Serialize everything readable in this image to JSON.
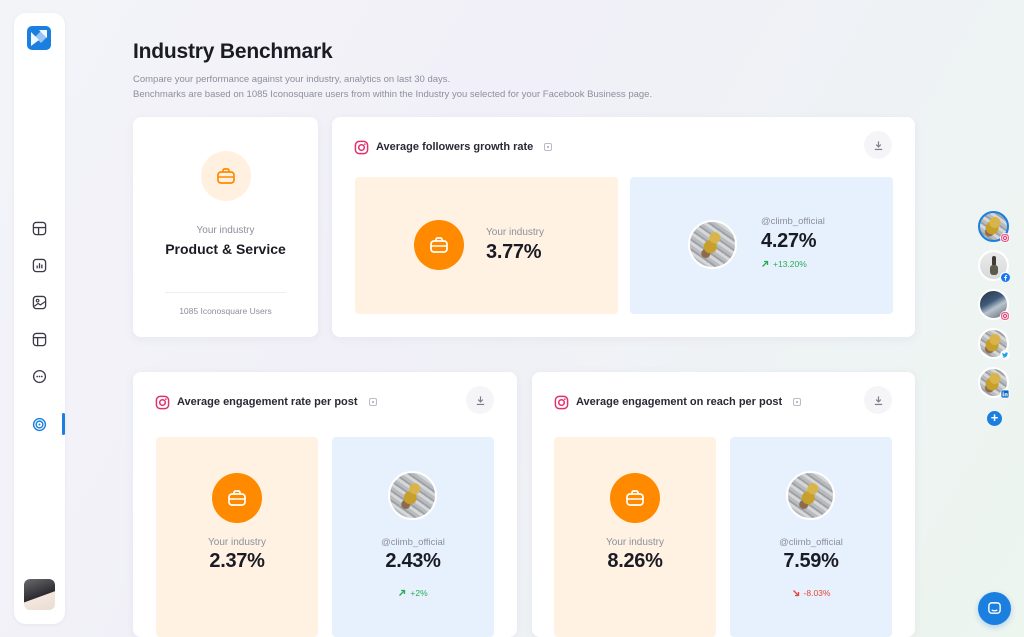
{
  "header": {
    "title": "Industry Benchmark",
    "subtitle_1": "Compare your performance against your industry, analytics on last 30 days.",
    "subtitle_2": "Benchmarks are based on 1085 Iconosquare users from within the Industry you selected for your Facebook Business page."
  },
  "sidebar": {
    "items": [
      {
        "icon": "layout-icon"
      },
      {
        "icon": "analytics-icon"
      },
      {
        "icon": "media-icon"
      },
      {
        "icon": "calendar-icon"
      },
      {
        "icon": "chat-icon"
      },
      {
        "icon": "benchmark-icon",
        "active": true
      }
    ]
  },
  "industry_card": {
    "label": "Your industry",
    "name": "Product & Service",
    "users": "1085 Iconosquare Users"
  },
  "followers_card": {
    "title": "Average followers growth rate",
    "industry_label": "Your industry",
    "industry_value": "3.77%",
    "handle": "@climb_official",
    "account_value": "4.27%",
    "delta": "+13.20%",
    "delta_dir": "up"
  },
  "engagement_card": {
    "title": "Average engagement rate per post",
    "industry_label": "Your industry",
    "industry_value": "2.37%",
    "handle": "@climb_official",
    "account_value": "2.43%",
    "delta": "+2%",
    "delta_dir": "up"
  },
  "reach_card": {
    "title": "Average engagement on reach per post",
    "industry_label": "Your industry",
    "industry_value": "8.26%",
    "handle": "@climb_official",
    "account_value": "7.59%",
    "delta": "-8.03%",
    "delta_dir": "down"
  },
  "accounts_rail": [
    {
      "network": "instagram",
      "selected": true
    },
    {
      "network": "facebook"
    },
    {
      "network": "instagram"
    },
    {
      "network": "twitter"
    },
    {
      "network": "linkedin"
    }
  ],
  "colors": {
    "accent": "#1b7fe0",
    "industry_orange": "#ff8a00",
    "positive": "#2cab56",
    "negative": "#e5463a"
  }
}
